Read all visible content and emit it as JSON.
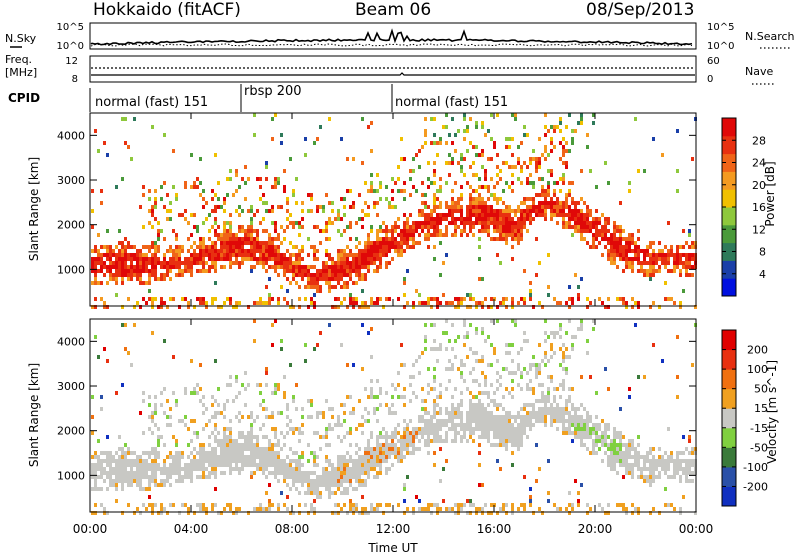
{
  "header": {
    "station": "Hokkaido (fitACF)",
    "beam": "Beam 06",
    "date": "08/Sep/2013"
  },
  "noise_panel": {
    "left_label": "N.Sky",
    "left_ticks": [
      "10^5",
      "10^0"
    ],
    "right_ticks": [
      "10^5",
      "10^0"
    ],
    "right_label": "N.Search"
  },
  "freq_panel": {
    "left_label_1": "Freq.",
    "left_label_2": "[MHz]",
    "left_ticks": [
      "12",
      "8"
    ],
    "right_ticks": [
      "60",
      "0"
    ],
    "right_label": "Nave"
  },
  "cpid": {
    "label": "CPID",
    "segments": [
      {
        "start_hour": 0,
        "end_hour": 6,
        "label": "normal (fast) 151"
      },
      {
        "start_hour": 6,
        "end_hour": 12,
        "label": "rbsp 200"
      },
      {
        "start_hour": 12,
        "end_hour": 24,
        "label": "normal (fast) 151"
      }
    ]
  },
  "chart_data": [
    {
      "type": "heatmap",
      "name": "power",
      "ylabel": "Slant Range [km]",
      "yticks": [
        "1000",
        "2000",
        "3000",
        "4000"
      ],
      "xlim": [
        0,
        24
      ],
      "ylim": [
        180,
        4500
      ],
      "colorbar": {
        "label": "Power [dB]",
        "ticks": [
          "4",
          "8",
          "12",
          "16",
          "20",
          "24",
          "28"
        ],
        "colors": [
          "#0010e0",
          "#1a3fa8",
          "#2e7a5a",
          "#4a9a3a",
          "#8ec83c",
          "#f0c000",
          "#f49a20",
          "#f06418",
          "#e83010",
          "#e00808"
        ]
      },
      "echo_track": {
        "hours": [
          0,
          2,
          4,
          5,
          6,
          7,
          8,
          9,
          10,
          11,
          12,
          13,
          14,
          15,
          16,
          16.8,
          17.3,
          18,
          19,
          20,
          21,
          22,
          23,
          24
        ],
        "range_km": [
          1150,
          1150,
          1250,
          1450,
          1550,
          1450,
          1050,
          900,
          1050,
          1350,
          1650,
          2000,
          2200,
          2250,
          2200,
          1950,
          2300,
          2500,
          2300,
          1900,
          1500,
          1300,
          1250,
          1250
        ]
      }
    },
    {
      "type": "heatmap",
      "name": "velocity",
      "ylabel": "Slant Range [km]",
      "yticks": [
        "1000",
        "2000",
        "3000",
        "4000"
      ],
      "xlim": [
        0,
        24
      ],
      "ylim": [
        180,
        4500
      ],
      "colorbar": {
        "label": "Velocity [m s^-1]",
        "ticks": [
          "200",
          "100",
          "50",
          "15",
          "-15",
          "-50",
          "-100",
          "-200"
        ],
        "colors": [
          "#1030c0",
          "#2a50a8",
          "#3a7a3a",
          "#80d040",
          "#c8c8c4",
          "#f0a020",
          "#f07010",
          "#e83010",
          "#e00000"
        ]
      }
    }
  ],
  "xaxis": {
    "label": "Time UT",
    "ticks": [
      "00:00",
      "04:00",
      "08:00",
      "12:00",
      "16:00",
      "20:00",
      "00:00"
    ]
  }
}
